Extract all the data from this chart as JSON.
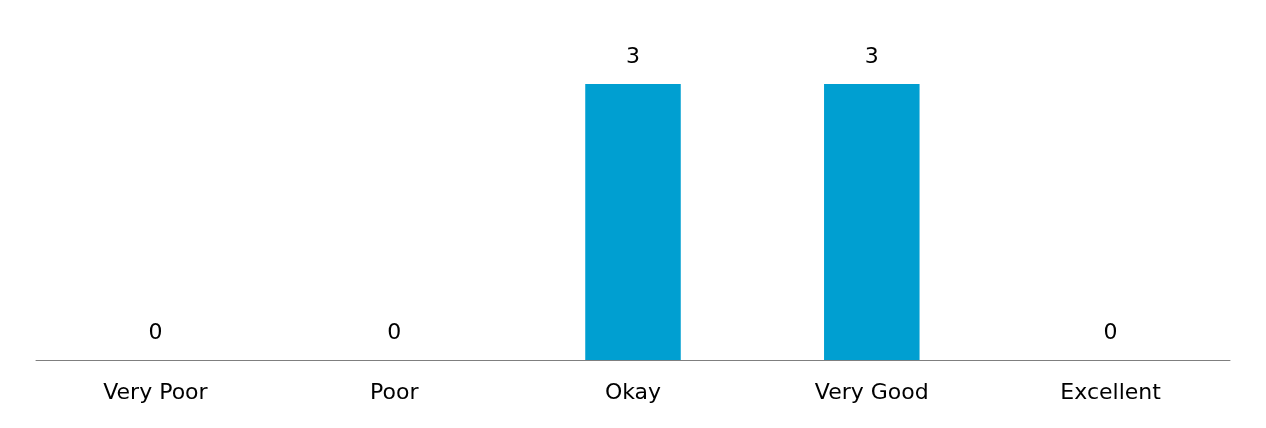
{
  "chart_data": {
    "type": "bar",
    "categories": [
      "Very Poor",
      "Poor",
      "Okay",
      "Very Good",
      "Excellent"
    ],
    "values": [
      0,
      0,
      3,
      3,
      0
    ],
    "color": "#009fd1",
    "data_labels": true,
    "grid": false
  }
}
